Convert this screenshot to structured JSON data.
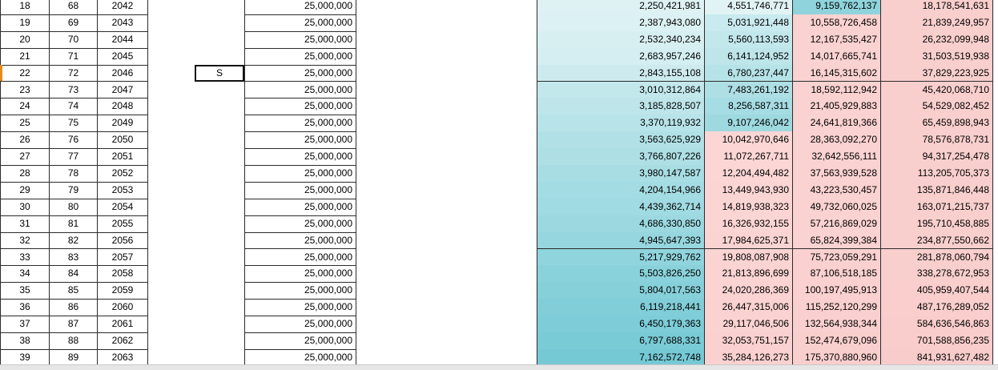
{
  "sheet": {
    "rows": [
      {
        "no": "18",
        "n": "68",
        "year": "2042",
        "amount": "25,000,000",
        "g": "2,250,421,981",
        "h": "4,551,746,771",
        "i": "9,159,762,137",
        "j": "18,178,541,631",
        "fills": [
          "#def2f4",
          "#e2f3f5",
          "#8fd4dd",
          "#f9cfce"
        ]
      },
      {
        "no": "19",
        "n": "69",
        "year": "2043",
        "amount": "25,000,000",
        "g": "2,387,943,080",
        "h": "5,031,921,448",
        "i": "10,558,726,458",
        "j": "21,839,249,957",
        "fills": [
          "#dbf1f3",
          "#c9eaee",
          "#fad2d1",
          "#f9cfce"
        ]
      },
      {
        "no": "20",
        "n": "70",
        "year": "2044",
        "amount": "25,000,000",
        "g": "2,532,340,234",
        "h": "5,560,113,593",
        "i": "12,167,535,427",
        "j": "26,232,099,948",
        "fills": [
          "#d8eff2",
          "#c3e8ec",
          "#fad2d1",
          "#f9cfce"
        ]
      },
      {
        "no": "21",
        "n": "71",
        "year": "2045",
        "amount": "25,000,000",
        "g": "2,683,957,246",
        "h": "6,141,124,952",
        "i": "14,017,665,741",
        "j": "31,503,519,938",
        "fills": [
          "#d4eef1",
          "#bde5ea",
          "#fad2d1",
          "#f9cfce"
        ]
      },
      {
        "no": "22",
        "n": "72",
        "year": "2046",
        "mark": "S",
        "amount": "25,000,000",
        "g": "2,843,155,108",
        "h": "6,780,237,447",
        "i": "16,145,315,602",
        "j": "37,829,223,925",
        "fills": [
          "#cdebef",
          "#b6e3e8",
          "#fad2d1",
          "#f9cfce"
        ]
      },
      {
        "no": "23",
        "n": "73",
        "year": "2047",
        "amount": "25,000,000",
        "g": "3,010,312,864",
        "h": "7,483,261,192",
        "i": "18,592,112,942",
        "j": "45,420,068,710",
        "fills": [
          "#c3e8ec",
          "#aedfe5",
          "#fad2d1",
          "#f9cfce"
        ]
      },
      {
        "no": "24",
        "n": "74",
        "year": "2048",
        "amount": "25,000,000",
        "g": "3,185,828,507",
        "h": "8,256,587,311",
        "i": "21,405,929,883",
        "j": "54,529,082,452",
        "fills": [
          "#bde5ea",
          "#a6dce3",
          "#fad2d1",
          "#f9cfce"
        ]
      },
      {
        "no": "25",
        "n": "75",
        "year": "2049",
        "amount": "25,000,000",
        "g": "3,370,119,932",
        "h": "9,107,246,042",
        "i": "24,641,819,366",
        "j": "65,459,898,943",
        "fills": [
          "#b7e3e9",
          "#9ed9e0",
          "#fad2d1",
          "#f9cfce"
        ]
      },
      {
        "no": "26",
        "n": "76",
        "year": "2050",
        "amount": "25,000,000",
        "g": "3,563,625,929",
        "h": "10,042,970,646",
        "i": "28,363,092,270",
        "j": "78,576,878,731",
        "fills": [
          "#b1e1e7",
          "#fbd6d5",
          "#fad2d1",
          "#f9cfce"
        ]
      },
      {
        "no": "27",
        "n": "77",
        "year": "2051",
        "amount": "25,000,000",
        "g": "3,766,807,226",
        "h": "11,072,267,711",
        "i": "32,642,556,111",
        "j": "94,317,254,478",
        "fills": [
          "#addfe5",
          "#fbd6d5",
          "#fad2d1",
          "#f9cfce"
        ]
      },
      {
        "no": "28",
        "n": "78",
        "year": "2052",
        "amount": "25,000,000",
        "g": "3,980,147,587",
        "h": "12,204,494,482",
        "i": "37,563,939,528",
        "j": "113,205,705,373",
        "fills": [
          "#a8dde4",
          "#fbd6d5",
          "#fad2d1",
          "#f9cfce"
        ]
      },
      {
        "no": "29",
        "n": "79",
        "year": "2053",
        "amount": "25,000,000",
        "g": "4,204,154,966",
        "h": "13,449,943,930",
        "i": "43,223,530,457",
        "j": "135,871,846,448",
        "fills": [
          "#a4dce3",
          "#fbd5d4",
          "#fad2d1",
          "#f9cfce"
        ]
      },
      {
        "no": "30",
        "n": "80",
        "year": "2054",
        "amount": "25,000,000",
        "g": "4,439,362,714",
        "h": "14,819,938,323",
        "i": "49,732,060,025",
        "j": "163,071,215,737",
        "fills": [
          "#a0dae2",
          "#fbd5d4",
          "#fad2d1",
          "#f9cfce"
        ]
      },
      {
        "no": "31",
        "n": "81",
        "year": "2055",
        "amount": "25,000,000",
        "g": "4,686,330,850",
        "h": "16,326,932,155",
        "i": "57,216,869,029",
        "j": "195,710,458,885",
        "fills": [
          "#9bd8e0",
          "#fbd5d4",
          "#fad2d1",
          "#f9cfce"
        ]
      },
      {
        "no": "32",
        "n": "82",
        "year": "2056",
        "amount": "25,000,000",
        "g": "4,945,647,393",
        "h": "17,984,625,371",
        "i": "65,824,399,384",
        "j": "234,877,550,662",
        "fills": [
          "#96d6df",
          "#fad4d3",
          "#fad2d1",
          "#f9cfce"
        ]
      },
      {
        "no": "33",
        "n": "83",
        "year": "2057",
        "amount": "25,000,000",
        "g": "5,217,929,762",
        "h": "19,808,087,908",
        "i": "75,723,059,291",
        "j": "281,878,060,794",
        "fills": [
          "#90d4dd",
          "#fad4d3",
          "#fad1d0",
          "#f9cfce"
        ]
      },
      {
        "no": "34",
        "n": "84",
        "year": "2058",
        "amount": "25,000,000",
        "g": "5,503,826,250",
        "h": "21,813,896,699",
        "i": "87,106,518,185",
        "j": "338,278,672,953",
        "fills": [
          "#8ad2db",
          "#fad3d2",
          "#fad1d0",
          "#f9cfce"
        ]
      },
      {
        "no": "35",
        "n": "85",
        "year": "2059",
        "amount": "25,000,000",
        "g": "5,804,017,563",
        "h": "24,020,286,369",
        "i": "100,197,495,913",
        "j": "405,959,407,544",
        "fills": [
          "#86d0da",
          "#fad3d2",
          "#fad1d0",
          "#f9cecd"
        ]
      },
      {
        "no": "36",
        "n": "86",
        "year": "2060",
        "amount": "25,000,000",
        "g": "6,119,218,441",
        "h": "26,447,315,006",
        "i": "115,252,120,299",
        "j": "487,176,289,052",
        "fills": [
          "#81ced8",
          "#fad2d1",
          "#f9d0cf",
          "#f9cecd"
        ]
      },
      {
        "no": "37",
        "n": "87",
        "year": "2061",
        "amount": "25,000,000",
        "g": "6,450,179,363",
        "h": "29,117,046,506",
        "i": "132,564,938,344",
        "j": "584,636,546,863",
        "fills": [
          "#7dccd7",
          "#fad2d1",
          "#f9d0cf",
          "#f9cdcc"
        ]
      },
      {
        "no": "38",
        "n": "88",
        "year": "2062",
        "amount": "25,000,000",
        "g": "6,797,688,331",
        "h": "32,053,751,157",
        "i": "152,474,679,096",
        "j": "701,588,856,235",
        "fills": [
          "#79cbd6",
          "#fad1d0",
          "#f9cfce",
          "#f9cdcc"
        ]
      },
      {
        "no": "39",
        "n": "89",
        "year": "2063",
        "amount": "25,000,000",
        "g": "7,162,572,748",
        "h": "35,284,126,273",
        "i": "175,370,880,960",
        "j": "841,931,627,482",
        "fills": [
          "#75c9d4",
          "#fad1d0",
          "#f9cfce",
          "#f8cccb"
        ]
      }
    ]
  }
}
